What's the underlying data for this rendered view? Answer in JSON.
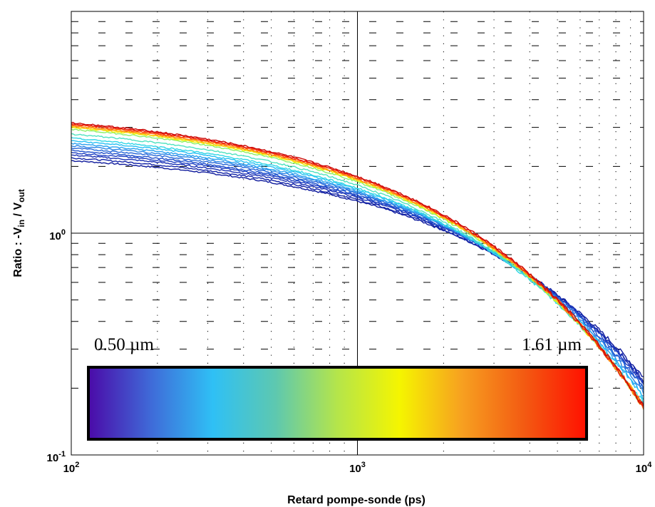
{
  "chart_data": {
    "type": "line",
    "xlabel": "Retard pompe-sonde (ps)",
    "ylabel": {
      "parts": [
        "Ratio : -V",
        "in",
        " / V",
        "out"
      ]
    },
    "xscale": "log",
    "yscale": "log",
    "xlim": [
      100,
      10000
    ],
    "ylim": [
      0.1,
      10
    ],
    "x_ticks": [
      {
        "base": "10",
        "exp": "2",
        "value": 100
      },
      {
        "base": "10",
        "exp": "3",
        "value": 1000
      },
      {
        "base": "10",
        "exp": "4",
        "value": 10000
      }
    ],
    "y_ticks": [
      {
        "base": "10",
        "exp": "-1",
        "value": 0.1
      },
      {
        "base": "10",
        "exp": "0",
        "value": 1
      }
    ],
    "grid": "major solid lines, minor dotted",
    "colorbar": {
      "min_label": "0.50 µm",
      "max_label": "1.61 µm",
      "colors": [
        "#4b0aa8",
        "#3f6ad8",
        "#2fc0f5",
        "#5dc8b0",
        "#b5e54a",
        "#f5f500",
        "#f7a020",
        "#f35a12",
        "#ff1000"
      ]
    },
    "series": [
      {
        "color": "#0e1a9c",
        "y100": 2.42,
        "decay": 1.0
      },
      {
        "color": "#1424a8",
        "y100": 2.5,
        "decay": 1.03
      },
      {
        "color": "#1a30b4",
        "y100": 2.58,
        "decay": 1.05
      },
      {
        "color": "#1f3fc2",
        "y100": 2.65,
        "decay": 1.07
      },
      {
        "color": "#2050cc",
        "y100": 2.72,
        "decay": 1.1
      },
      {
        "color": "#2566d8",
        "y100": 2.8,
        "decay": 1.12
      },
      {
        "color": "#2a84e6",
        "y100": 2.88,
        "decay": 1.15
      },
      {
        "color": "#2aa2f0",
        "y100": 2.96,
        "decay": 1.18
      },
      {
        "color": "#26c0f4",
        "y100": 3.05,
        "decay": 1.2
      },
      {
        "color": "#2fd6e6",
        "y100": 3.15,
        "decay": 1.24
      },
      {
        "color": "#4fe2c0",
        "y100": 3.3,
        "decay": 1.27
      },
      {
        "color": "#8cf06a",
        "y100": 3.48,
        "decay": 1.3
      },
      {
        "color": "#f0f000",
        "y100": 3.55,
        "decay": 1.31
      },
      {
        "color": "#ffc21a",
        "y100": 3.58,
        "decay": 1.31
      },
      {
        "color": "#ff8a10",
        "y100": 3.62,
        "decay": 1.32
      },
      {
        "color": "#ff5010",
        "y100": 3.66,
        "decay": 1.32
      },
      {
        "color": "#e81e10",
        "y100": 3.7,
        "decay": 1.33
      },
      {
        "color": "#cc0a08",
        "y100": 3.74,
        "decay": 1.33
      }
    ]
  }
}
